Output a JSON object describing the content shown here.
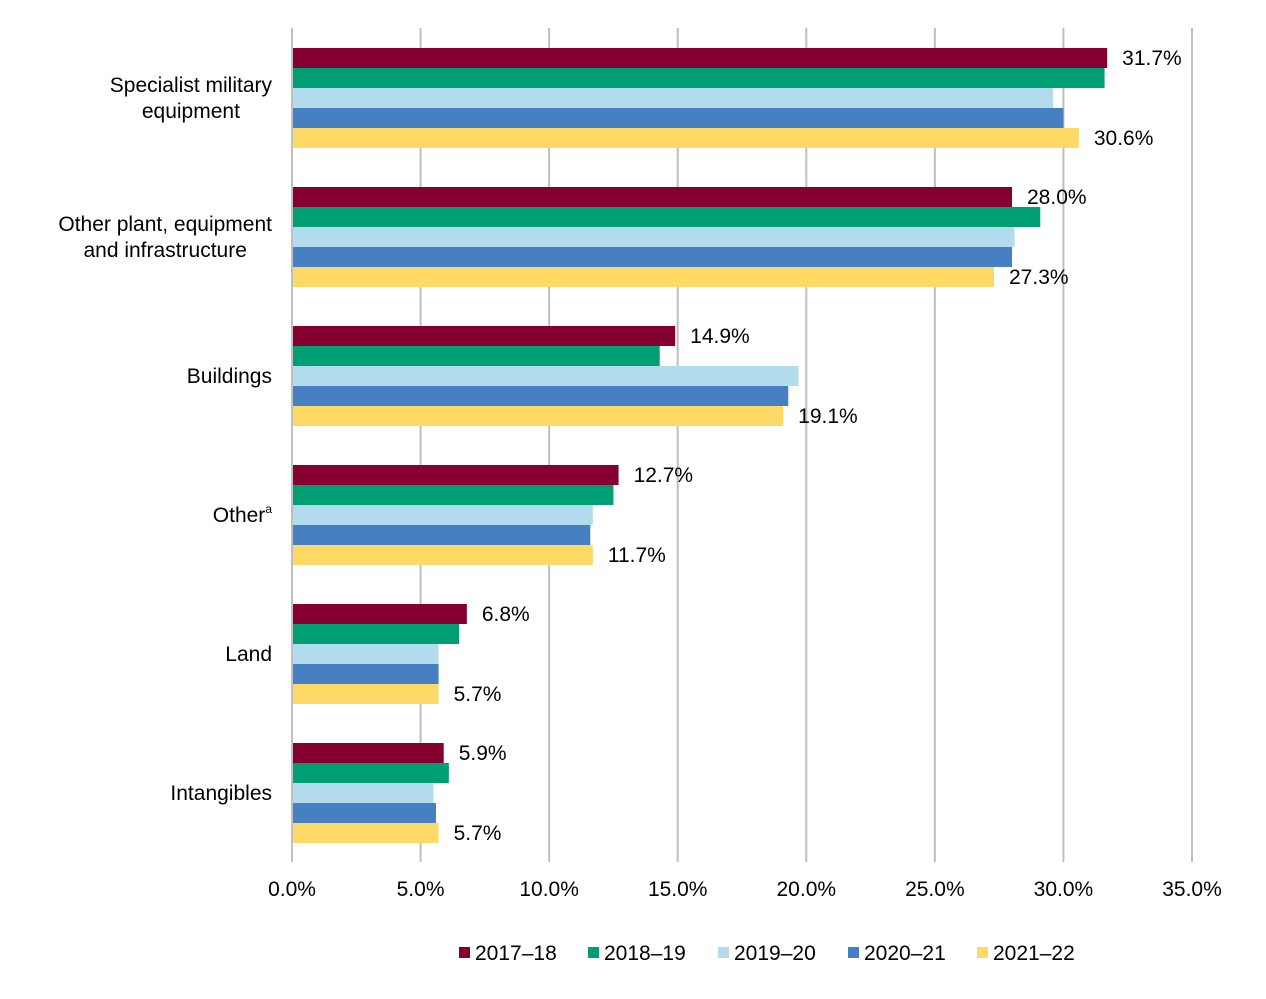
{
  "chart_data": {
    "type": "bar",
    "orientation": "horizontal",
    "categories": [
      [
        "Specialist military",
        "equipment"
      ],
      [
        "Other plant, equipment",
        "and infrastructure"
      ],
      [
        "Buildings"
      ],
      [
        "Other"
      ],
      [
        "Land"
      ],
      [
        "Intangibles"
      ]
    ],
    "category_superscripts": [
      "",
      "",
      "",
      "a",
      "",
      ""
    ],
    "series": [
      {
        "name": "2017–18",
        "color": "#850030",
        "values": [
          31.7,
          28.0,
          14.9,
          12.7,
          6.8,
          5.9
        ]
      },
      {
        "name": "2018–19",
        "color": "#009E73",
        "values": [
          31.6,
          29.1,
          14.3,
          12.5,
          6.5,
          6.1
        ]
      },
      {
        "name": "2019–20",
        "color": "#B3DBEE",
        "values": [
          29.6,
          28.1,
          19.7,
          11.7,
          5.7,
          5.5
        ]
      },
      {
        "name": "2020–21",
        "color": "#4680C2",
        "values": [
          30.0,
          28.0,
          19.3,
          11.6,
          5.7,
          5.6
        ]
      },
      {
        "name": "2021–22",
        "color": "#FFD966",
        "values": [
          30.6,
          27.3,
          19.1,
          11.7,
          5.7,
          5.7
        ]
      }
    ],
    "data_labels": [
      {
        "category": 0,
        "series": 0,
        "text": "31.7%"
      },
      {
        "category": 0,
        "series": 4,
        "text": "30.6%"
      },
      {
        "category": 1,
        "series": 0,
        "text": "28.0%"
      },
      {
        "category": 1,
        "series": 4,
        "text": "27.3%"
      },
      {
        "category": 2,
        "series": 0,
        "text": "14.9%"
      },
      {
        "category": 2,
        "series": 4,
        "text": "19.1%"
      },
      {
        "category": 3,
        "series": 0,
        "text": "12.7%"
      },
      {
        "category": 3,
        "series": 4,
        "text": "11.7%"
      },
      {
        "category": 4,
        "series": 0,
        "text": "6.8%"
      },
      {
        "category": 4,
        "series": 4,
        "text": "5.7%"
      },
      {
        "category": 5,
        "series": 0,
        "text": "5.9%"
      },
      {
        "category": 5,
        "series": 4,
        "text": "5.7%"
      }
    ],
    "xlim": [
      0,
      35
    ],
    "x_ticks": [
      0,
      5,
      10,
      15,
      20,
      25,
      30,
      35
    ],
    "x_tick_labels": [
      "0.0%",
      "5.0%",
      "10.0%",
      "15.0%",
      "20.0%",
      "25.0%",
      "30.0%",
      "35.0%"
    ],
    "grid": true,
    "legend_position": "bottom",
    "title": "",
    "xlabel": "",
    "ylabel": ""
  }
}
